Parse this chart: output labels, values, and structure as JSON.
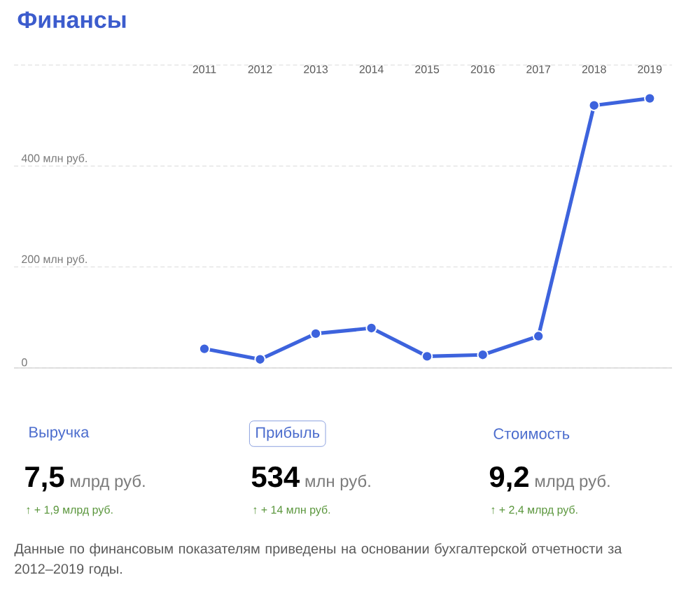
{
  "chart_data": {
    "type": "line",
    "title": "Финансы",
    "categories": [
      "2011",
      "2012",
      "2013",
      "2014",
      "2015",
      "2016",
      "2017",
      "2018",
      "2019"
    ],
    "series": [
      {
        "color": "#3d63dd",
        "values": [
          38,
          17,
          68,
          79,
          23,
          26,
          63,
          520,
          534
        ]
      }
    ],
    "ylim": [
      0,
      600
    ],
    "yticks": [
      {
        "value": 0,
        "label": "0"
      },
      {
        "value": 200,
        "label": "200 млн руб."
      },
      {
        "value": 400,
        "label": "400 млн руб."
      }
    ],
    "grid": "y",
    "marker": "circle",
    "line_style": "solid",
    "annotations": [
      "Выручка",
      "7,5",
      "млрд руб.",
      "↑ + 1,9 млрд руб.",
      "Прибыль",
      "534",
      "млн руб.",
      "↑ + 14 млн руб.",
      "Стоимость",
      "9,2",
      "млрд руб.",
      "↑ + 2,4 млрд руб.",
      "Данные по финансовым показателям приведены на основании бухгалтерской отчетности за 2012–2019 годы."
    ]
  }
}
